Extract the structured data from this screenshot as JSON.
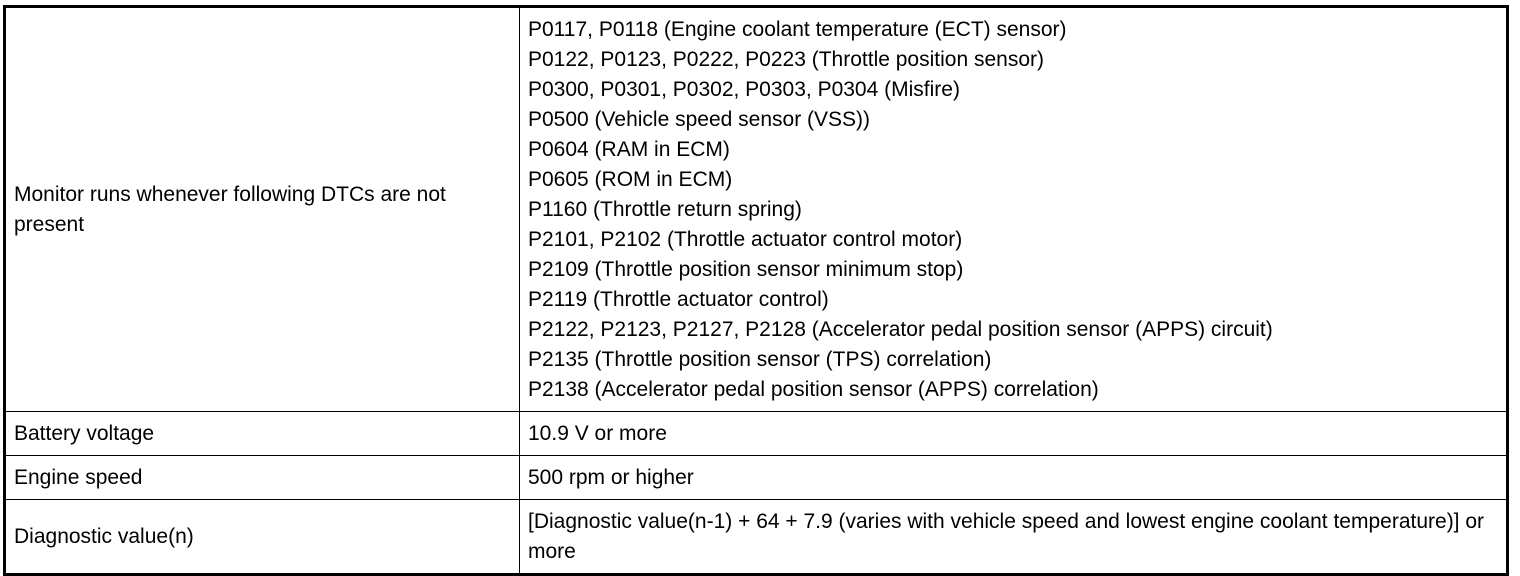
{
  "table": {
    "rows": [
      {
        "label": "Monitor runs whenever following DTCs are not present",
        "lines": [
          "P0117, P0118 (Engine coolant temperature (ECT) sensor)",
          "P0122, P0123, P0222, P0223 (Throttle position sensor)",
          "P0300, P0301, P0302, P0303, P0304 (Misfire)",
          "P0500 (Vehicle speed sensor (VSS))",
          "P0604 (RAM in ECM)",
          "P0605 (ROM in ECM)",
          "P1160 (Throttle return spring)",
          "P2101, P2102 (Throttle actuator control motor)",
          "P2109 (Throttle position sensor minimum stop)",
          "P2119 (Throttle actuator control)",
          "P2122, P2123, P2127, P2128 (Accelerator pedal position sensor (APPS) circuit)",
          "P2135 (Throttle position sensor (TPS) correlation)",
          "P2138 (Accelerator pedal position sensor (APPS) correlation)"
        ]
      },
      {
        "label": "Battery voltage",
        "lines": [
          "10.9 V or more"
        ]
      },
      {
        "label": "Engine speed",
        "lines": [
          "500 rpm or higher"
        ]
      },
      {
        "label": "Diagnostic value(n)",
        "lines": [
          "[Diagnostic value(n-1) + 64 + 7.9 (varies with vehicle speed and lowest engine coolant temperature)] or more"
        ]
      }
    ]
  }
}
